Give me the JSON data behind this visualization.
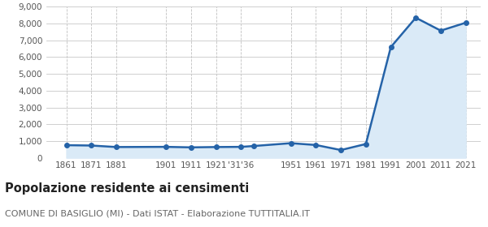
{
  "years": [
    1861,
    1871,
    1881,
    1901,
    1911,
    1921,
    1931,
    1936,
    1951,
    1961,
    1971,
    1981,
    1991,
    2001,
    2011,
    2021
  ],
  "population": [
    750,
    730,
    640,
    650,
    620,
    640,
    650,
    700,
    870,
    760,
    460,
    820,
    6600,
    8350,
    7580,
    8050
  ],
  "line_color": "#2563a8",
  "fill_color": "#daeaf7",
  "marker_color": "#2563a8",
  "background_color": "#ffffff",
  "grid_color_h": "#c8c8c8",
  "grid_color_v": "#c0c0c0",
  "title": "Popolazione residente ai censimenti",
  "subtitle": "COMUNE DI BASIGLIO (MI) - Dati ISTAT - Elaborazione TUTTITALIA.IT",
  "ylim": [
    0,
    9000
  ],
  "yticks": [
    0,
    1000,
    2000,
    3000,
    4000,
    5000,
    6000,
    7000,
    8000,
    9000
  ],
  "x_positions": [
    1861,
    1871,
    1881,
    1901,
    1911,
    1921,
    1931,
    1951,
    1961,
    1971,
    1981,
    1991,
    2001,
    2011,
    2021
  ],
  "x_labels": [
    "1861",
    "1871",
    "1881",
    "1901",
    "1911",
    "1921",
    "'31'36",
    "1951",
    "1961",
    "1971",
    "1981",
    "1991",
    "2001",
    "2011",
    "2021"
  ],
  "xlim_left": 1853,
  "xlim_right": 2027,
  "title_fontsize": 10.5,
  "subtitle_fontsize": 8,
  "tick_fontsize": 7.5,
  "ytick_fontsize": 7.5
}
